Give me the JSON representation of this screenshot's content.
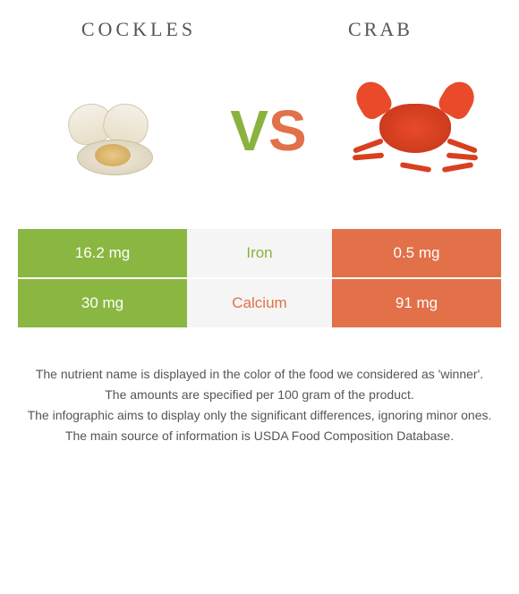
{
  "header": {
    "left_title": "COCKLES",
    "right_title": "CRAB"
  },
  "vs": {
    "v_color": "#8ab23e",
    "s_color": "#e27049"
  },
  "colors": {
    "left": "#8ab741",
    "right": "#e27049",
    "mid_bg": "#f5f5f5",
    "winner_left_text": "#8ab23e",
    "winner_right_text": "#e27049"
  },
  "nutrients": [
    {
      "name": "Iron",
      "left_value": "16.2 mg",
      "right_value": "0.5 mg",
      "winner": "left"
    },
    {
      "name": "Calcium",
      "left_value": "30 mg",
      "right_value": "91 mg",
      "winner": "right"
    }
  ],
  "footnotes": [
    "The nutrient name is displayed in the color of the food we considered as 'winner'.",
    "The amounts are specified per 100 gram of the product.",
    "The infographic aims to display only the significant differences, ignoring minor ones.",
    "The main source of information is USDA Food Composition Database."
  ]
}
